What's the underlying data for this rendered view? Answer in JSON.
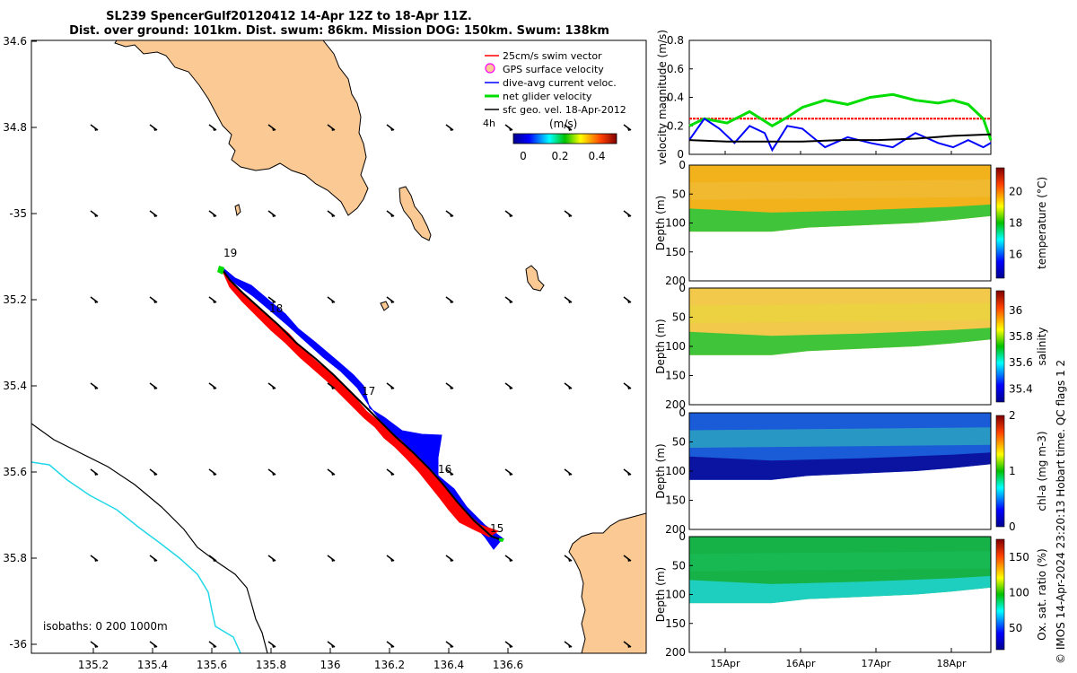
{
  "title": {
    "line1": "SL239 SpencerGulf20120412 14-Apr 12Z to 18-Apr 11Z.",
    "line2": "Dist. over ground: 101km. Dist. swum: 86km. Mission DOG: 150km. Swum: 138km"
  },
  "credit": "© IMOS 14-Apr-2024 23:20:13 Hobart time. QC flags 1  2",
  "map": {
    "lon_ticks": [
      "135.2",
      "135.4",
      "135.6",
      "135.8",
      "136",
      "136.2",
      "136.4",
      "136.6"
    ],
    "lat_ticks": [
      "34.6",
      "34.8",
      "-35",
      "35.2",
      "35.4",
      "35.6",
      "35.8",
      "-36"
    ],
    "day_markers": [
      "19",
      "18",
      "17",
      "16",
      "15"
    ],
    "legend": [
      {
        "label": "25cm/s swim vector",
        "color": "#ff0000"
      },
      {
        "label": "GPS surface velocity",
        "color": "#ff00ff"
      },
      {
        "label": "dive-avg current veloc.",
        "color": "#0000ff"
      },
      {
        "label": "net glider velocity",
        "color": "#00dd00"
      },
      {
        "label": "sfc geo. vel. 18-Apr-2012",
        "color": "#000000"
      }
    ],
    "interval": "4h",
    "colorbar": {
      "label": "(m/s)",
      "ticks": [
        "0",
        "0.2",
        "0.4"
      ]
    },
    "isobaths": "isobaths: 0   200  1000m"
  },
  "chart_data": [
    {
      "type": "line",
      "title": "",
      "xlabel": "",
      "ylabel": "velocity magnitude (m/s)",
      "ylim": [
        0,
        0.8
      ],
      "yticks": [
        "0",
        "0.2",
        "0.4",
        "0.6",
        "0.8"
      ],
      "xlim_days": [
        14.5,
        18.5
      ],
      "series": [
        {
          "name": "25cm/s swim vector",
          "color": "#ff0000",
          "x": [
            14.5,
            18.5
          ],
          "values": [
            0.25,
            0.25
          ]
        },
        {
          "name": "net glider velocity",
          "color": "#00dd00",
          "x": [
            14.5,
            14.7,
            15.0,
            15.3,
            15.6,
            15.8,
            16.0,
            16.3,
            16.6,
            16.9,
            17.2,
            17.5,
            17.8,
            18.0,
            18.2,
            18.4,
            18.5
          ],
          "values": [
            0.2,
            0.25,
            0.22,
            0.3,
            0.2,
            0.26,
            0.33,
            0.38,
            0.35,
            0.4,
            0.42,
            0.38,
            0.36,
            0.38,
            0.35,
            0.25,
            0.1
          ]
        },
        {
          "name": "dive-avg current veloc.",
          "color": "#0000ff",
          "x": [
            14.5,
            14.7,
            14.9,
            15.1,
            15.3,
            15.5,
            15.6,
            15.8,
            16.0,
            16.3,
            16.6,
            16.9,
            17.2,
            17.5,
            17.8,
            18.0,
            18.2,
            18.4,
            18.5
          ],
          "values": [
            0.1,
            0.25,
            0.18,
            0.08,
            0.2,
            0.15,
            0.03,
            0.2,
            0.18,
            0.05,
            0.12,
            0.08,
            0.05,
            0.15,
            0.08,
            0.05,
            0.1,
            0.05,
            0.08
          ]
        },
        {
          "name": "sfc geo. vel.",
          "color": "#000000",
          "x": [
            14.5,
            15.0,
            15.5,
            16.0,
            16.5,
            17.0,
            17.5,
            18.0,
            18.5
          ],
          "values": [
            0.1,
            0.09,
            0.09,
            0.09,
            0.1,
            0.1,
            0.11,
            0.13,
            0.14
          ]
        }
      ]
    },
    {
      "type": "heatmap",
      "variable": "temperature",
      "ylabel": "Depth (m)",
      "ylim": [
        200,
        0
      ],
      "yticks": [
        "0",
        "50",
        "100",
        "150",
        "200"
      ],
      "colorbar_label": "temperature (°C)",
      "colorbar_ticks": [
        "20",
        "18",
        "16"
      ],
      "range": [
        14.5,
        21.5
      ]
    },
    {
      "type": "heatmap",
      "variable": "salinity",
      "ylabel": "Depth (m)",
      "ylim": [
        200,
        0
      ],
      "yticks": [
        "0",
        "50",
        "100",
        "150",
        "200"
      ],
      "colorbar_label": "salinity",
      "colorbar_ticks": [
        "36",
        "35.8",
        "35.6",
        "35.4"
      ],
      "range": [
        35.3,
        36.15
      ]
    },
    {
      "type": "heatmap",
      "variable": "chl-a",
      "ylabel": "Depth (m)",
      "ylim": [
        200,
        0
      ],
      "yticks": [
        "0",
        "50",
        "100",
        "150",
        "200"
      ],
      "colorbar_label": "chl-a (mg m-3)",
      "colorbar_ticks": [
        "2",
        "1",
        "0"
      ],
      "range": [
        0,
        2
      ]
    },
    {
      "type": "heatmap",
      "variable": "oxygen saturation",
      "ylabel": "Depth (m)",
      "ylim": [
        200,
        0
      ],
      "yticks": [
        "0",
        "50",
        "100",
        "150",
        "200"
      ],
      "colorbar_label": "Ox. sat. ratio (%)",
      "colorbar_ticks": [
        "150",
        "100",
        "50"
      ],
      "range": [
        20,
        175
      ],
      "xticks": [
        "15Apr",
        "16Apr",
        "17Apr",
        "18Apr"
      ]
    }
  ]
}
